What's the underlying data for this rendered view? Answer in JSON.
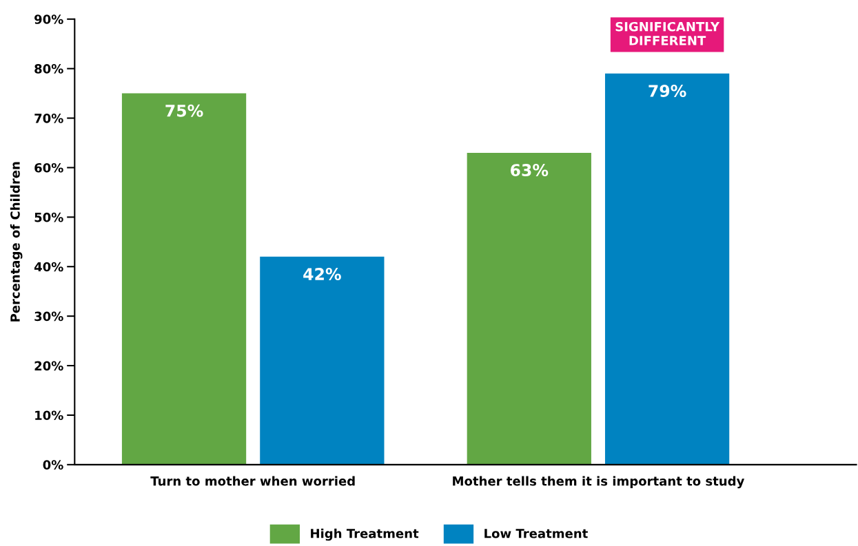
{
  "chart_data": {
    "type": "bar",
    "ylabel": "Percentage of Children",
    "categories": [
      "Turn to mother when worried",
      "Mother tells them it is important to study"
    ],
    "series": [
      {
        "name": "High Treatment",
        "color": "#62a744",
        "values": [
          75,
          63
        ],
        "value_labels": [
          "75%",
          "63%"
        ]
      },
      {
        "name": "Low Treatment",
        "color": "#0083c1",
        "values": [
          42,
          79
        ],
        "value_labels": [
          "42%",
          "79%"
        ]
      }
    ],
    "ylim": [
      0,
      90
    ],
    "yticks": [
      {
        "value": 0,
        "label": "0%"
      },
      {
        "value": 10,
        "label": "10%"
      },
      {
        "value": 20,
        "label": "20%"
      },
      {
        "value": 30,
        "label": "30%"
      },
      {
        "value": 40,
        "label": "40%"
      },
      {
        "value": 50,
        "label": "50%"
      },
      {
        "value": 60,
        "label": "60%"
      },
      {
        "value": 70,
        "label": "70%"
      },
      {
        "value": 80,
        "label": "80%"
      },
      {
        "value": 90,
        "label": "90%"
      }
    ],
    "annotations": [
      "SIGNIFICANTLY\nDIFFERENT"
    ],
    "grid": false,
    "legend": "bottom"
  }
}
